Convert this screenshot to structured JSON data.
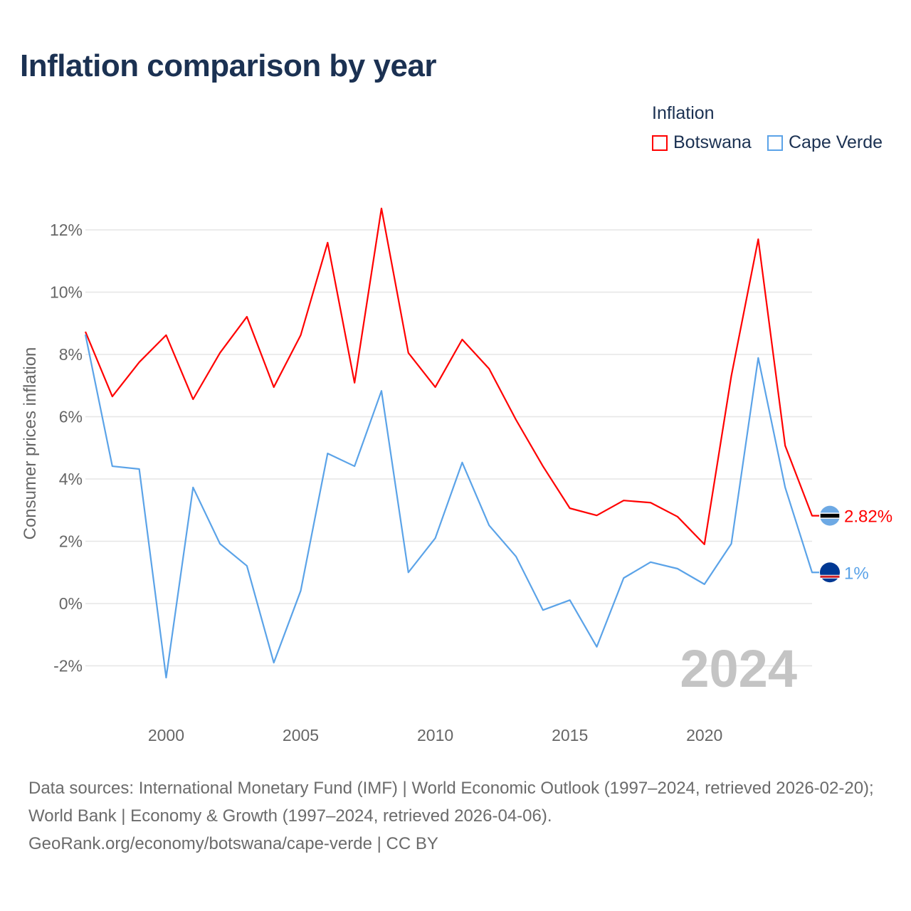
{
  "chart_data": {
    "type": "line",
    "title": "Inflation comparison by year",
    "ylabel": "Consumer prices inflation",
    "xlabel": "",
    "ylim": [
      -3,
      13
    ],
    "xlim": [
      1997,
      2024
    ],
    "yticks": [
      -2,
      0,
      2,
      4,
      6,
      8,
      10,
      12
    ],
    "ytick_labels": [
      "-2%",
      "0%",
      "2%",
      "4%",
      "6%",
      "8%",
      "10%",
      "12%"
    ],
    "xticks": [
      2000,
      2005,
      2010,
      2015,
      2020
    ],
    "xtick_labels": [
      "2000",
      "2005",
      "2010",
      "2015",
      "2020"
    ],
    "grid": true,
    "legend_title": "Inflation",
    "legend_placement": "top-right",
    "watermark_year": "2024",
    "x": [
      1997,
      1998,
      1999,
      2000,
      2001,
      2002,
      2003,
      2004,
      2005,
      2006,
      2007,
      2008,
      2009,
      2010,
      2011,
      2012,
      2013,
      2014,
      2015,
      2016,
      2017,
      2018,
      2019,
      2020,
      2021,
      2022,
      2023,
      2024
    ],
    "series": [
      {
        "name": "Botswana",
        "color": "#ff0000",
        "end_label": "2.82%",
        "values": [
          8.73,
          6.65,
          7.75,
          8.62,
          6.56,
          8.05,
          9.21,
          6.95,
          8.62,
          11.59,
          7.09,
          12.69,
          8.05,
          6.95,
          8.48,
          7.54,
          5.9,
          4.41,
          3.06,
          2.83,
          3.31,
          3.24,
          2.79,
          1.9,
          7.31,
          11.7,
          5.07,
          2.82
        ]
      },
      {
        "name": "Cape Verde",
        "color": "#5ba3e8",
        "end_label": "1%",
        "values": [
          8.64,
          4.41,
          4.32,
          -2.38,
          3.73,
          1.92,
          1.21,
          -1.9,
          0.41,
          4.82,
          4.41,
          6.83,
          1.0,
          2.1,
          4.53,
          2.51,
          1.51,
          -0.21,
          0.11,
          -1.39,
          0.82,
          1.33,
          1.12,
          0.62,
          1.92,
          7.89,
          3.73,
          1.0
        ]
      }
    ]
  },
  "footer": {
    "sources": "Data sources: International Monetary Fund (IMF) | World Economic Outlook (1997–2024, retrieved 2026-02-20); World Bank | Economy & Growth (1997–2024, retrieved 2026-04-06).",
    "credit": "GeoRank.org/economy/botswana/cape-verde | CC BY"
  }
}
